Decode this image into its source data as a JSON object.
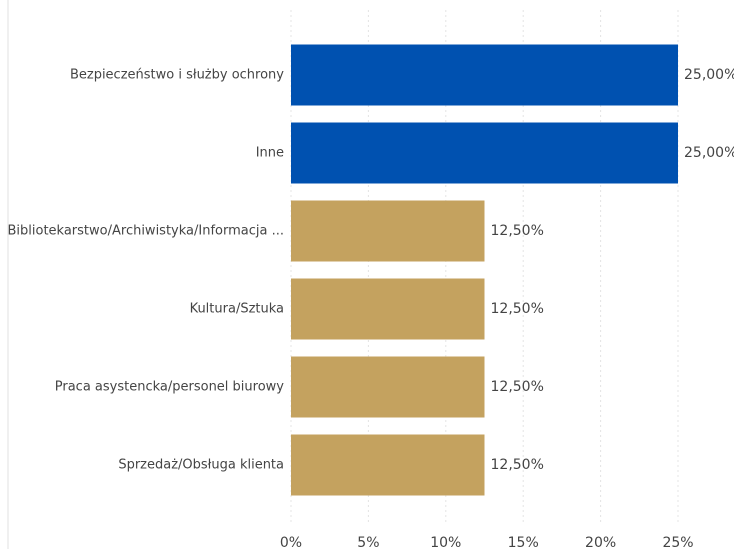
{
  "chart_data": {
    "type": "hbar",
    "categories": [
      "Bezpieczeństwo i służby ochrony",
      "Inne",
      "Bibliotekarstwo/Archiwistyka/Informacja ...",
      "Kultura/Sztuka",
      "Praca asystencka/personel biurowy",
      "Sprzedaż/Obsługa klienta"
    ],
    "values": [
      25,
      25,
      12.5,
      12.5,
      12.5,
      12.5
    ],
    "value_labels": [
      "25,00%",
      "25,00%",
      "12,50%",
      "12,50%",
      "12,50%",
      "12,50%"
    ],
    "colors": [
      "#0051b0",
      "#0051b0",
      "#c4a25f",
      "#c4a25f",
      "#c4a25f",
      "#c4a25f"
    ],
    "xlim": [
      0,
      25
    ],
    "xticks": [
      {
        "value": 0,
        "label": "0%"
      },
      {
        "value": 5,
        "label": "5%"
      },
      {
        "value": 10,
        "label": "10%"
      },
      {
        "value": 15,
        "label": "15%"
      },
      {
        "value": 20,
        "label": "20%"
      },
      {
        "value": 25,
        "label": "25%"
      }
    ],
    "grid": true
  }
}
